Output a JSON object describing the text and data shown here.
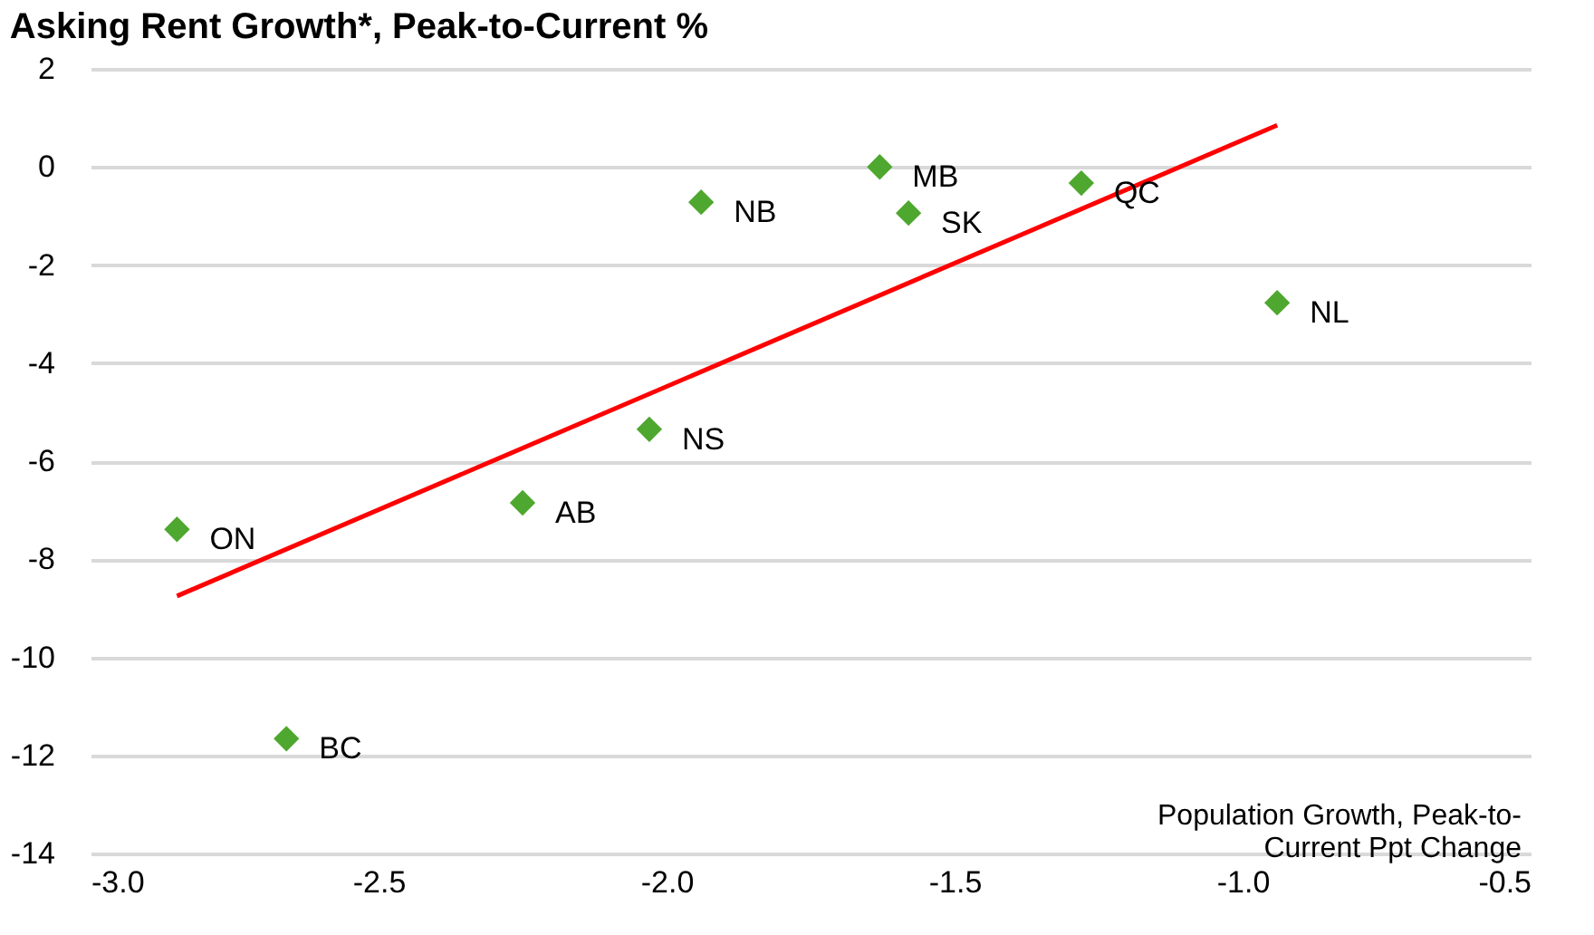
{
  "chart_data": {
    "type": "scatter",
    "title": "Asking Rent Growth*, Peak-to-Current %",
    "series": [
      {
        "color": "#4ea72e",
        "marker": "diamond",
        "x": [
          -2.85,
          -2.66,
          -2.25,
          -2.03,
          -1.94,
          -1.63,
          -1.58,
          -1.28,
          -0.94
        ],
        "values": [
          -7.39,
          -11.66,
          -6.85,
          -5.35,
          -0.72,
          0.0,
          -0.94,
          -0.33,
          -2.77
        ]
      },
      {
        "type": "line",
        "color": "#ff0000",
        "line_style": "solid",
        "x": [
          -2.85,
          -0.94
        ],
        "values": [
          -8.75,
          0.85
        ]
      }
    ],
    "annotations": [
      {
        "text": "ON",
        "x": -2.85,
        "y": -7.39
      },
      {
        "text": "BC",
        "x": -2.66,
        "y": -11.66
      },
      {
        "text": "AB",
        "x": -2.25,
        "y": -6.85
      },
      {
        "text": "NS",
        "x": -2.03,
        "y": -5.35
      },
      {
        "text": "NB",
        "x": -1.94,
        "y": -0.72
      },
      {
        "text": "MB",
        "x": -1.63,
        "y": 0.0
      },
      {
        "text": "SK",
        "x": -1.58,
        "y": -0.94
      },
      {
        "text": "QC",
        "x": -1.28,
        "y": -0.33
      },
      {
        "text": "NL",
        "x": -0.94,
        "y": -2.77
      },
      "Population Growth, Peak-to-\nCurrent Ppt Change"
    ],
    "xlim": [
      -3.0,
      -0.5
    ],
    "xticks": [
      {
        "value": -3.0,
        "label": "-3.0"
      },
      {
        "value": -2.5,
        "label": "-2.5"
      },
      {
        "value": -2.0,
        "label": "-2.0"
      },
      {
        "value": -1.5,
        "label": "-1.5"
      },
      {
        "value": -1.0,
        "label": "-1.0"
      },
      {
        "value": -0.5,
        "label": "-0.5"
      }
    ],
    "ylim": [
      -14,
      2
    ],
    "yticks": [
      -14,
      -12,
      -10,
      -8,
      -6,
      -4,
      -2,
      0,
      2
    ],
    "grid": "y"
  }
}
